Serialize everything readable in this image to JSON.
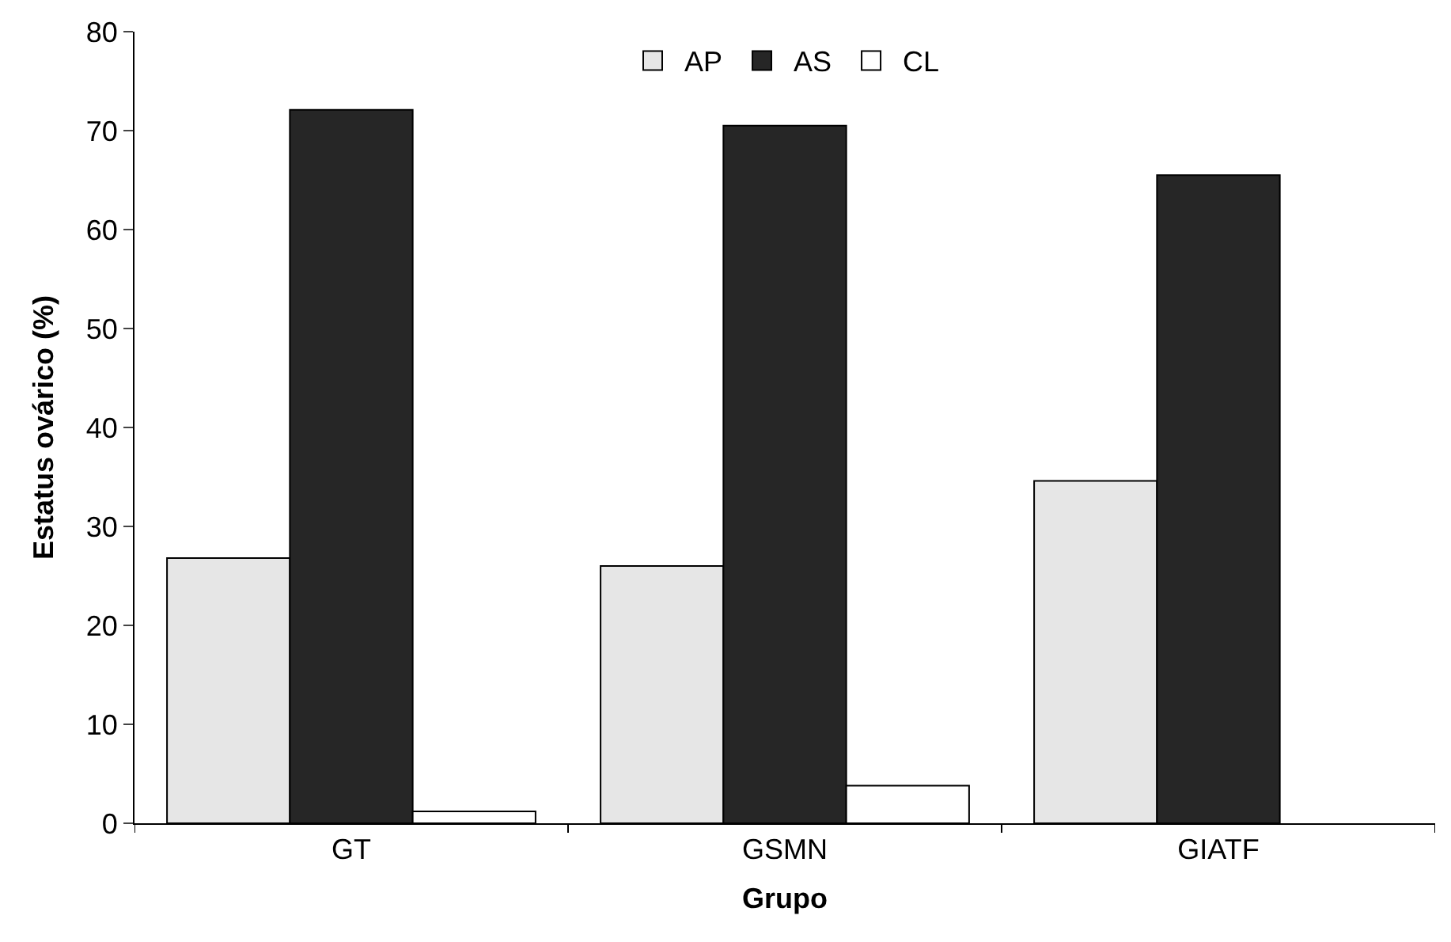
{
  "chart_data": {
    "type": "bar",
    "xlabel": "Grupo",
    "ylabel": "Estatus ovárico (%)",
    "categories": [
      "GT",
      "GSMN",
      "GIATF"
    ],
    "series": [
      {
        "name": "AP",
        "color": "#e6e6e6",
        "values": [
          26.8,
          26.0,
          34.6
        ]
      },
      {
        "name": "AS",
        "color": "#262626",
        "values": [
          72.1,
          70.5,
          65.5
        ]
      },
      {
        "name": "CL",
        "color": "#ffffff",
        "values": [
          1.2,
          3.8,
          null
        ]
      }
    ],
    "ylim": [
      0,
      80
    ],
    "yticks": [
      0,
      10,
      20,
      30,
      40,
      50,
      60,
      70,
      80
    ],
    "legend": "top"
  }
}
